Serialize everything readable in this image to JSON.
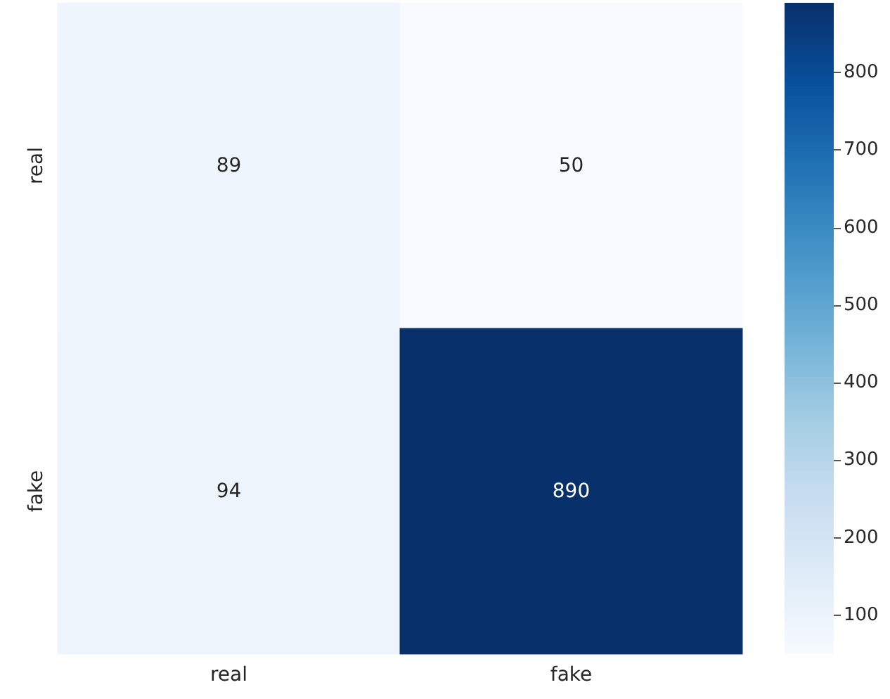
{
  "chart_data": {
    "type": "heatmap",
    "categories": [
      "real",
      "fake"
    ],
    "y_categories": [
      "real",
      "fake"
    ],
    "cells": [
      [
        89,
        50
      ],
      [
        94,
        890
      ]
    ],
    "clim": [
      50,
      890
    ],
    "cticks": [
      100,
      200,
      300,
      400,
      500,
      600,
      700,
      800
    ],
    "data_labels": true
  }
}
